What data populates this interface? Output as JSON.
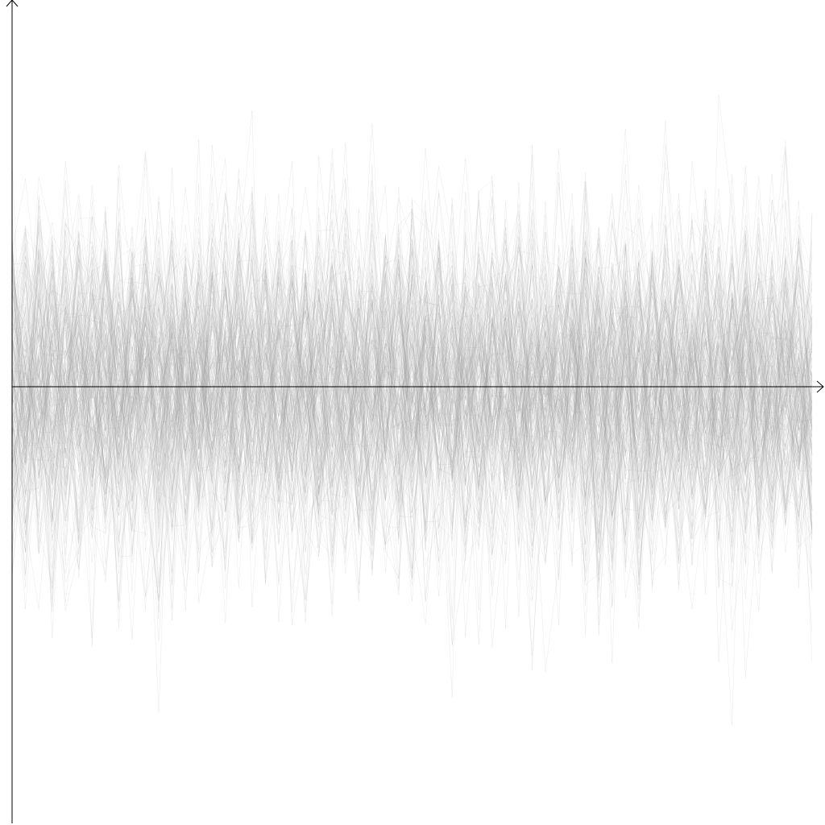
{
  "chart_data": {
    "type": "line",
    "title": "",
    "xlabel": "",
    "ylabel": "",
    "grid": false,
    "legend": "none",
    "xlim": [
      0,
      60
    ],
    "ylim": [
      -4.2,
      4.8
    ],
    "x": [
      0,
      1,
      2,
      3,
      4,
      5,
      6,
      7,
      8,
      9,
      10,
      11,
      12,
      13,
      14,
      15,
      16,
      17,
      18,
      19,
      20,
      21,
      22,
      23,
      24,
      25,
      26,
      27,
      28,
      29,
      30,
      31,
      32,
      33,
      34,
      35,
      36,
      37,
      38,
      39,
      40,
      41,
      42,
      43,
      44,
      45,
      46,
      47,
      48,
      49,
      50,
      51,
      52,
      53,
      54,
      55,
      56,
      57,
      58,
      59,
      60
    ],
    "series_count": 200,
    "series_seed": 12345,
    "series_sigma": 1.0,
    "line_color": "#9a9a9a",
    "axis_color": "#000000"
  }
}
